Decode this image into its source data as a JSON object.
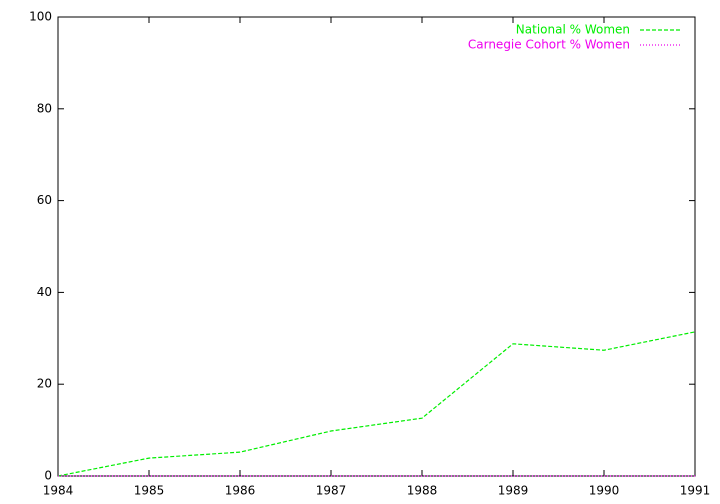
{
  "chart_data": {
    "type": "line",
    "x": [
      1984,
      1985,
      1986,
      1987,
      1988,
      1989,
      1990,
      1991
    ],
    "series": [
      {
        "name": "National % Women",
        "color": "#00ee00",
        "values": [
          0,
          3.9,
          5.2,
          9.8,
          12.6,
          28.8,
          27.4,
          31.4
        ]
      },
      {
        "name": "Carnegie Cohort % Women",
        "color": "#ee00ee",
        "values": [
          0,
          0,
          0,
          0,
          0,
          0,
          0,
          0
        ]
      }
    ],
    "xlim": [
      1984,
      1991
    ],
    "xticks": [
      1984,
      1985,
      1986,
      1987,
      1988,
      1989,
      1990,
      1991
    ],
    "ylim": [
      0,
      100
    ],
    "yticks": [
      0,
      20,
      40,
      60,
      80,
      100
    ],
    "grid": false,
    "legend": "top-right"
  }
}
